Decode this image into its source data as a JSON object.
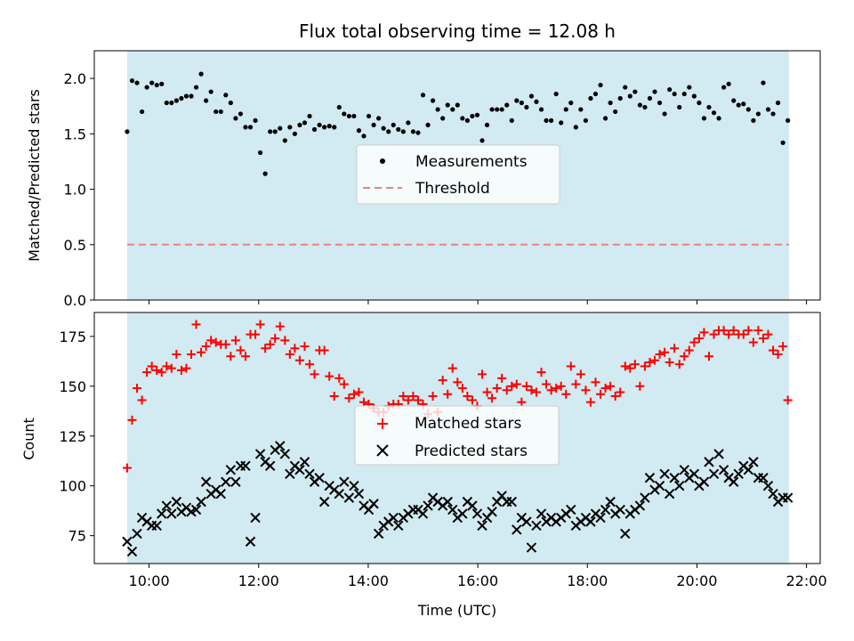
{
  "chart_data": [
    {
      "type": "scatter",
      "title": "Flux total observing time = 12.08 h",
      "xlabel": "",
      "ylabel": "Matched/Predicted stars",
      "ylim": [
        0,
        2.25
      ],
      "yticks": [
        0.0,
        0.5,
        1.0,
        1.5,
        2.0
      ],
      "ytick_labels": [
        "0.0",
        "0.5",
        "1.0",
        "1.5",
        "2.0"
      ],
      "xlim_hours": [
        9.0,
        22.25
      ],
      "xticks_hours": [
        10,
        12,
        14,
        16,
        18,
        20,
        22
      ],
      "xtick_labels": [],
      "shaded_span_hours": [
        9.6,
        21.68
      ],
      "shade_color": "#add8e6",
      "legend_position": "center",
      "legend": [
        {
          "label": "Measurements",
          "marker": "dot",
          "color": "#000000"
        },
        {
          "label": "Threshold",
          "marker": "dashed-line",
          "color": "#f08080"
        }
      ],
      "threshold": 0.5,
      "threshold_color": "#f08080",
      "series": [
        {
          "name": "Measurements",
          "color": "#000000",
          "x": [
            9.6,
            9.69,
            9.78,
            9.87,
            9.96,
            10.05,
            10.14,
            10.23,
            10.32,
            10.41,
            10.5,
            10.59,
            10.68,
            10.77,
            10.86,
            10.95,
            11.04,
            11.13,
            11.22,
            11.31,
            11.4,
            11.49,
            11.58,
            11.67,
            11.76,
            11.85,
            11.94,
            12.03,
            12.12,
            12.21,
            12.3,
            12.39,
            12.48,
            12.57,
            12.66,
            12.75,
            12.84,
            12.93,
            13.02,
            13.11,
            13.2,
            13.29,
            13.38,
            13.47,
            13.56,
            13.65,
            13.74,
            13.83,
            13.92,
            14.01,
            14.1,
            14.19,
            14.28,
            14.37,
            14.46,
            14.55,
            14.64,
            14.73,
            14.82,
            14.91,
            15.0,
            15.09,
            15.18,
            15.27,
            15.36,
            15.45,
            15.54,
            15.63,
            15.72,
            15.81,
            15.9,
            15.99,
            16.08,
            16.17,
            16.26,
            16.35,
            16.44,
            16.53,
            16.62,
            16.71,
            16.8,
            16.89,
            16.98,
            17.07,
            17.16,
            17.25,
            17.34,
            17.43,
            17.52,
            17.61,
            17.7,
            17.79,
            17.88,
            17.97,
            18.06,
            18.15,
            18.24,
            18.33,
            18.42,
            18.51,
            18.6,
            18.69,
            18.78,
            18.87,
            18.96,
            19.05,
            19.14,
            19.23,
            19.32,
            19.41,
            19.5,
            19.59,
            19.68,
            19.77,
            19.86,
            19.95,
            20.04,
            20.13,
            20.22,
            20.31,
            20.4,
            20.49,
            20.58,
            20.67,
            20.76,
            20.85,
            20.94,
            21.03,
            21.12,
            21.21,
            21.3,
            21.39,
            21.48,
            21.57,
            21.66
          ],
          "y": [
            1.52,
            1.98,
            1.96,
            1.7,
            1.92,
            1.96,
            1.94,
            1.95,
            1.78,
            1.78,
            1.8,
            1.82,
            1.84,
            1.84,
            1.92,
            2.04,
            1.8,
            1.88,
            1.7,
            1.7,
            1.85,
            1.78,
            1.64,
            1.68,
            1.56,
            1.56,
            1.62,
            1.33,
            1.14,
            1.52,
            1.52,
            1.55,
            1.44,
            1.56,
            1.5,
            1.58,
            1.6,
            1.66,
            1.54,
            1.58,
            1.56,
            1.57,
            1.56,
            1.74,
            1.68,
            1.66,
            1.66,
            1.53,
            1.48,
            1.66,
            1.58,
            1.64,
            1.55,
            1.52,
            1.58,
            1.54,
            1.52,
            1.6,
            1.52,
            1.51,
            1.85,
            1.58,
            1.8,
            1.72,
            1.64,
            1.76,
            1.72,
            1.76,
            1.64,
            1.62,
            1.66,
            1.67,
            1.44,
            1.58,
            1.72,
            1.72,
            1.72,
            1.76,
            1.62,
            1.8,
            1.78,
            1.74,
            1.84,
            1.79,
            1.72,
            1.62,
            1.62,
            1.86,
            1.6,
            1.72,
            1.78,
            1.56,
            1.72,
            1.62,
            1.82,
            1.86,
            1.94,
            1.64,
            1.78,
            1.7,
            1.82,
            1.92,
            1.84,
            1.88,
            1.76,
            1.74,
            1.82,
            1.88,
            1.78,
            1.68,
            1.9,
            1.86,
            1.74,
            1.86,
            1.92,
            1.84,
            1.78,
            1.64,
            1.74,
            1.69,
            1.64,
            1.92,
            1.95,
            1.8,
            1.76,
            1.77,
            1.72,
            1.62,
            1.68,
            1.96,
            1.72,
            1.68,
            1.78,
            1.42,
            1.62
          ]
        }
      ]
    },
    {
      "type": "scatter",
      "title": "",
      "xlabel": "Time (UTC)",
      "ylabel": "Count",
      "ylim": [
        61,
        187
      ],
      "yticks": [
        75,
        100,
        125,
        150,
        175
      ],
      "ytick_labels": [
        "75",
        "100",
        "125",
        "150",
        "175"
      ],
      "xlim_hours": [
        9.0,
        22.25
      ],
      "xticks_hours": [
        10,
        12,
        14,
        16,
        18,
        20,
        22
      ],
      "xtick_labels": [
        "10:00",
        "12:00",
        "14:00",
        "16:00",
        "18:00",
        "20:00",
        "22:00"
      ],
      "shaded_span_hours": [
        9.6,
        21.68
      ],
      "shade_color": "#add8e6",
      "legend_position": "center",
      "legend": [
        {
          "label": "Matched stars",
          "marker": "plus",
          "color": "#ff0000"
        },
        {
          "label": "Predicted stars",
          "marker": "x",
          "color": "#000000"
        }
      ],
      "series": [
        {
          "name": "Matched stars",
          "marker": "plus",
          "color": "#ff0000",
          "x": [
            9.6,
            9.69,
            9.78,
            9.87,
            9.96,
            10.05,
            10.14,
            10.23,
            10.32,
            10.41,
            10.5,
            10.59,
            10.68,
            10.77,
            10.86,
            10.95,
            11.04,
            11.13,
            11.22,
            11.31,
            11.4,
            11.49,
            11.58,
            11.67,
            11.76,
            11.85,
            11.94,
            12.03,
            12.12,
            12.21,
            12.3,
            12.39,
            12.48,
            12.57,
            12.66,
            12.75,
            12.84,
            12.93,
            13.02,
            13.11,
            13.2,
            13.29,
            13.38,
            13.47,
            13.56,
            13.65,
            13.74,
            13.83,
            13.92,
            14.01,
            14.1,
            14.19,
            14.28,
            14.37,
            14.46,
            14.55,
            14.64,
            14.73,
            14.82,
            14.91,
            15.0,
            15.09,
            15.18,
            15.27,
            15.36,
            15.45,
            15.54,
            15.63,
            15.72,
            15.81,
            15.9,
            15.99,
            16.08,
            16.17,
            16.26,
            16.35,
            16.44,
            16.53,
            16.62,
            16.71,
            16.8,
            16.89,
            16.98,
            17.07,
            17.16,
            17.25,
            17.34,
            17.43,
            17.52,
            17.61,
            17.7,
            17.79,
            17.88,
            17.97,
            18.06,
            18.15,
            18.24,
            18.33,
            18.42,
            18.51,
            18.6,
            18.69,
            18.78,
            18.87,
            18.96,
            19.05,
            19.14,
            19.23,
            19.32,
            19.41,
            19.5,
            19.59,
            19.68,
            19.77,
            19.86,
            19.95,
            20.04,
            20.13,
            20.22,
            20.31,
            20.4,
            20.49,
            20.58,
            20.67,
            20.76,
            20.85,
            20.94,
            21.03,
            21.12,
            21.21,
            21.3,
            21.39,
            21.48,
            21.57,
            21.66
          ],
          "y": [
            109,
            133,
            149,
            143,
            157,
            160,
            158,
            157,
            160,
            159,
            166,
            158,
            159,
            166,
            181,
            167,
            170,
            173,
            172,
            171,
            171,
            165,
            173,
            168,
            165,
            176,
            176,
            181,
            169,
            171,
            174,
            180,
            173,
            166,
            169,
            163,
            170,
            161,
            156,
            168,
            168,
            155,
            145,
            154,
            151,
            144,
            146,
            147,
            142,
            141,
            139,
            137,
            137,
            140,
            141,
            141,
            145,
            143,
            145,
            143,
            141,
            136,
            145,
            137,
            153,
            146,
            159,
            152,
            149,
            145,
            143,
            140,
            156,
            147,
            144,
            149,
            154,
            148,
            150,
            151,
            142,
            150,
            148,
            147,
            157,
            151,
            148,
            149,
            150,
            146,
            160,
            151,
            156,
            148,
            142,
            152,
            146,
            149,
            150,
            145,
            147,
            160,
            159,
            161,
            150,
            160,
            162,
            163,
            166,
            167,
            162,
            169,
            161,
            165,
            168,
            172,
            174,
            177,
            165,
            176,
            178,
            178,
            176,
            178,
            176,
            176,
            178,
            172,
            178,
            174,
            176,
            168,
            166,
            170,
            143
          ]
        },
        {
          "name": "Predicted stars",
          "marker": "x",
          "color": "#000000",
          "x": [
            9.6,
            9.69,
            9.78,
            9.87,
            9.96,
            10.05,
            10.14,
            10.23,
            10.32,
            10.41,
            10.5,
            10.59,
            10.68,
            10.77,
            10.86,
            10.95,
            11.04,
            11.13,
            11.22,
            11.31,
            11.4,
            11.49,
            11.58,
            11.67,
            11.76,
            11.85,
            11.94,
            12.03,
            12.12,
            12.21,
            12.3,
            12.39,
            12.48,
            12.57,
            12.66,
            12.75,
            12.84,
            12.93,
            13.02,
            13.11,
            13.2,
            13.29,
            13.38,
            13.47,
            13.56,
            13.65,
            13.74,
            13.83,
            13.92,
            14.01,
            14.1,
            14.19,
            14.28,
            14.37,
            14.46,
            14.55,
            14.64,
            14.73,
            14.82,
            14.91,
            15.0,
            15.09,
            15.18,
            15.27,
            15.36,
            15.45,
            15.54,
            15.63,
            15.72,
            15.81,
            15.9,
            15.99,
            16.08,
            16.17,
            16.26,
            16.35,
            16.44,
            16.53,
            16.62,
            16.71,
            16.8,
            16.89,
            16.98,
            17.07,
            17.16,
            17.25,
            17.34,
            17.43,
            17.52,
            17.61,
            17.7,
            17.79,
            17.88,
            17.97,
            18.06,
            18.15,
            18.24,
            18.33,
            18.42,
            18.51,
            18.6,
            18.69,
            18.78,
            18.87,
            18.96,
            19.05,
            19.14,
            19.23,
            19.32,
            19.41,
            19.5,
            19.59,
            19.68,
            19.77,
            19.86,
            19.95,
            20.04,
            20.13,
            20.22,
            20.31,
            20.4,
            20.49,
            20.58,
            20.67,
            20.76,
            20.85,
            20.94,
            21.03,
            21.12,
            21.21,
            21.3,
            21.39,
            21.48,
            21.57,
            21.66
          ],
          "y": [
            72,
            67,
            76,
            84,
            82,
            80,
            80,
            86,
            90,
            86,
            92,
            87,
            89,
            87,
            88,
            92,
            102,
            96,
            98,
            96,
            102,
            108,
            102,
            110,
            110,
            72,
            84,
            116,
            112,
            110,
            118,
            120,
            116,
            106,
            110,
            108,
            112,
            106,
            102,
            104,
            92,
            100,
            98,
            96,
            102,
            94,
            100,
            96,
            90,
            88,
            91,
            76,
            80,
            82,
            84,
            80,
            84,
            86,
            88,
            88,
            86,
            90,
            94,
            92,
            90,
            92,
            88,
            84,
            86,
            92,
            90,
            86,
            80,
            84,
            87,
            92,
            95,
            92,
            92,
            78,
            84,
            82,
            69,
            80,
            86,
            82,
            84,
            82,
            84,
            86,
            88,
            80,
            82,
            84,
            82,
            86,
            84,
            88,
            92,
            86,
            88,
            76,
            86,
            88,
            90,
            94,
            104,
            98,
            100,
            106,
            96,
            104,
            100,
            108,
            104,
            106,
            100,
            102,
            112,
            106,
            116,
            108,
            104,
            102,
            106,
            110,
            108,
            112,
            104,
            104,
            100,
            96,
            92,
            94,
            94
          ]
        }
      ]
    }
  ]
}
